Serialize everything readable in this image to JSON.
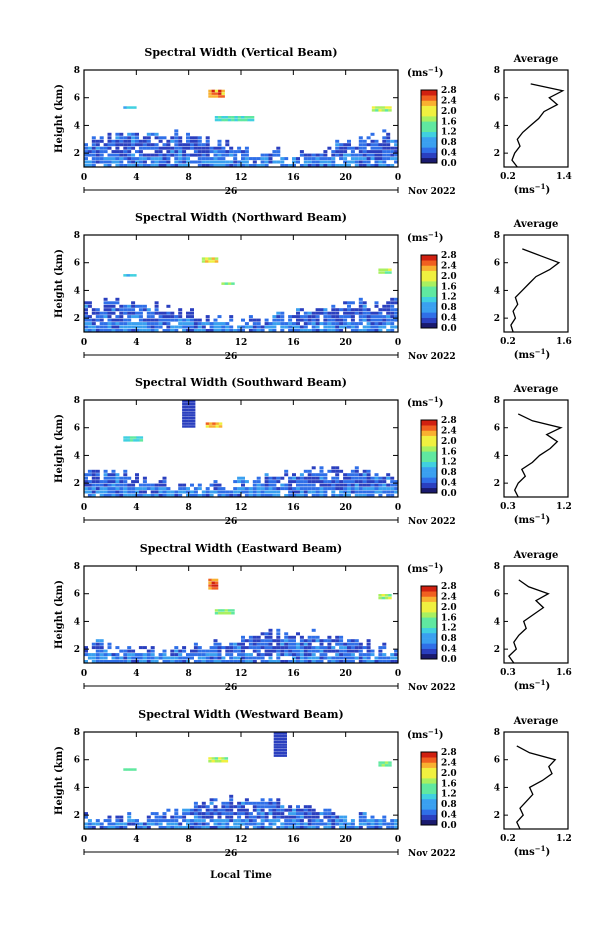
{
  "figure": {
    "xlabel": "Local Time",
    "ylabel": "Height (km)",
    "date_label": "Nov 2022",
    "day_label": "26",
    "unit_label": "(ms",
    "unit_exp": "−1",
    "average_title": "Average",
    "avg_xlabel": "(ms",
    "time_ticks": [
      "0",
      "4",
      "8",
      "12",
      "16",
      "20",
      "0"
    ],
    "height_ticks": [
      "2",
      "4",
      "6",
      "8"
    ],
    "colorbar_ticks": [
      "0.0",
      "0.4",
      "0.8",
      "1.2",
      "1.6",
      "2.0",
      "2.4",
      "2.8"
    ],
    "colors": {
      "colormap": [
        "#1a1a6e",
        "#2a3fbf",
        "#2f6fe8",
        "#3aa0f0",
        "#40d0e0",
        "#60e8a0",
        "#a8f060",
        "#f0f040",
        "#f8b030",
        "#f06020",
        "#d02010"
      ]
    }
  },
  "chart_data": [
    {
      "type": "heatmap",
      "title": "Spectral Width (Vertical Beam)",
      "xlabel": "Local Time",
      "ylabel": "Height (km)",
      "xlim": [
        0,
        24
      ],
      "ylim": [
        1,
        8
      ],
      "clim": [
        0,
        2.8
      ],
      "cloud_base_km": 3.6,
      "features": [
        {
          "t0": 9.5,
          "t1": 10.6,
          "h0": 6.0,
          "h1": 6.6,
          "value": 2.6
        },
        {
          "t0": 3.0,
          "t1": 4.0,
          "h0": 5.2,
          "h1": 5.4,
          "value": 1.0
        },
        {
          "t0": 10.0,
          "t1": 13.0,
          "h0": 4.3,
          "h1": 4.6,
          "value": 1.4
        },
        {
          "t0": 22.0,
          "t1": 23.5,
          "h0": 5.0,
          "h1": 5.3,
          "value": 1.8
        }
      ],
      "average_profile": {
        "xlim": [
          0.2,
          1.4
        ],
        "xticks": [
          "0.2",
          "1.4"
        ],
        "height": [
          1,
          1.5,
          2,
          2.5,
          3,
          3.5,
          4,
          4.5,
          5,
          5.5,
          6,
          6.5,
          7
        ],
        "width": [
          0.45,
          0.35,
          0.4,
          0.5,
          0.45,
          0.55,
          0.7,
          0.85,
          0.95,
          1.2,
          1.05,
          1.3,
          0.7
        ]
      }
    },
    {
      "type": "heatmap",
      "title": "Spectral Width (Northward Beam)",
      "xlabel": "Local Time",
      "ylabel": "Height (km)",
      "xlim": [
        0,
        24
      ],
      "ylim": [
        1,
        8
      ],
      "clim": [
        0,
        2.8
      ],
      "cloud_base_km": 3.3,
      "features": [
        {
          "t0": 9.0,
          "t1": 10.2,
          "h0": 6.0,
          "h1": 6.4,
          "value": 2.2
        },
        {
          "t0": 10.5,
          "t1": 11.5,
          "h0": 4.4,
          "h1": 4.6,
          "value": 1.6
        },
        {
          "t0": 3.0,
          "t1": 4.0,
          "h0": 5.0,
          "h1": 5.2,
          "value": 1.0
        },
        {
          "t0": 22.5,
          "t1": 23.5,
          "h0": 5.2,
          "h1": 5.5,
          "value": 1.8
        }
      ],
      "average_profile": {
        "xlim": [
          0.2,
          1.6
        ],
        "xticks": [
          "0.2",
          "1.6"
        ],
        "height": [
          1,
          1.5,
          2,
          2.5,
          3,
          3.5,
          4,
          4.5,
          5,
          5.5,
          6,
          6.5,
          7
        ],
        "width": [
          0.4,
          0.35,
          0.45,
          0.4,
          0.5,
          0.45,
          0.6,
          0.75,
          0.9,
          1.2,
          1.4,
          1.0,
          0.6
        ]
      }
    },
    {
      "type": "heatmap",
      "title": "Spectral Width (Southward Beam)",
      "xlabel": "Local Time",
      "ylabel": "Height (km)",
      "xlim": [
        0,
        24
      ],
      "ylim": [
        1,
        8
      ],
      "clim": [
        0,
        2.8
      ],
      "cloud_base_km": 3.2,
      "features": [
        {
          "t0": 9.3,
          "t1": 10.5,
          "h0": 6.0,
          "h1": 6.4,
          "value": 2.4
        },
        {
          "t0": 3.0,
          "t1": 4.5,
          "h0": 5.0,
          "h1": 5.3,
          "value": 1.2
        },
        {
          "t0": 7.5,
          "t1": 8.5,
          "h0": 6.0,
          "h1": 8.0,
          "value": 0.2
        }
      ],
      "average_profile": {
        "xlim": [
          0.3,
          1.2
        ],
        "xticks": [
          "0.3",
          "1.2"
        ],
        "height": [
          1,
          1.5,
          2,
          2.5,
          3,
          3.5,
          4,
          4.5,
          5,
          5.5,
          6,
          6.5,
          7
        ],
        "width": [
          0.5,
          0.45,
          0.5,
          0.6,
          0.55,
          0.7,
          0.8,
          0.95,
          1.05,
          0.9,
          1.1,
          0.7,
          0.5
        ]
      }
    },
    {
      "type": "heatmap",
      "title": "Spectral Width (Eastward Beam)",
      "xlabel": "Local Time",
      "ylabel": "Height (km)",
      "xlim": [
        0,
        24
      ],
      "ylim": [
        1,
        8
      ],
      "clim": [
        0,
        2.8
      ],
      "cloud_base_km": 3.3,
      "features": [
        {
          "t0": 9.5,
          "t1": 10.2,
          "h0": 6.3,
          "h1": 7.1,
          "value": 2.6
        },
        {
          "t0": 10.0,
          "t1": 11.5,
          "h0": 4.5,
          "h1": 4.8,
          "value": 1.6
        },
        {
          "t0": 22.5,
          "t1": 23.5,
          "h0": 5.6,
          "h1": 6.0,
          "value": 1.8
        }
      ],
      "average_profile": {
        "xlim": [
          0.3,
          1.6
        ],
        "xticks": [
          "0.3",
          "1.6"
        ],
        "height": [
          1,
          1.5,
          2,
          2.5,
          3,
          3.5,
          4,
          4.5,
          5,
          5.5,
          6,
          6.5,
          7
        ],
        "width": [
          0.5,
          0.4,
          0.55,
          0.5,
          0.6,
          0.75,
          0.7,
          0.9,
          1.1,
          0.95,
          1.2,
          0.8,
          0.6
        ]
      }
    },
    {
      "type": "heatmap",
      "title": "Spectral Width (Westward Beam)",
      "xlabel": "Local Time",
      "ylabel": "Height (km)",
      "xlim": [
        0,
        24
      ],
      "ylim": [
        1,
        8
      ],
      "clim": [
        0,
        2.8
      ],
      "cloud_base_km": 3.2,
      "features": [
        {
          "t0": 3.0,
          "t1": 4.0,
          "h0": 5.2,
          "h1": 5.4,
          "value": 1.4
        },
        {
          "t0": 9.5,
          "t1": 10.8,
          "h0": 5.8,
          "h1": 6.1,
          "value": 1.8
        },
        {
          "t0": 14.5,
          "t1": 15.5,
          "h0": 6.2,
          "h1": 8.0,
          "value": 0.2
        },
        {
          "t0": 22.5,
          "t1": 23.5,
          "h0": 5.5,
          "h1": 5.8,
          "value": 1.6
        }
      ],
      "average_profile": {
        "xlim": [
          0.2,
          1.2
        ],
        "xticks": [
          "0.2",
          "1.2"
        ],
        "height": [
          1,
          1.5,
          2,
          2.5,
          3,
          3.5,
          4,
          4.5,
          5,
          5.5,
          6,
          6.5,
          7
        ],
        "width": [
          0.45,
          0.4,
          0.5,
          0.45,
          0.55,
          0.65,
          0.6,
          0.8,
          0.95,
          0.9,
          1.0,
          0.6,
          0.4
        ]
      }
    }
  ]
}
